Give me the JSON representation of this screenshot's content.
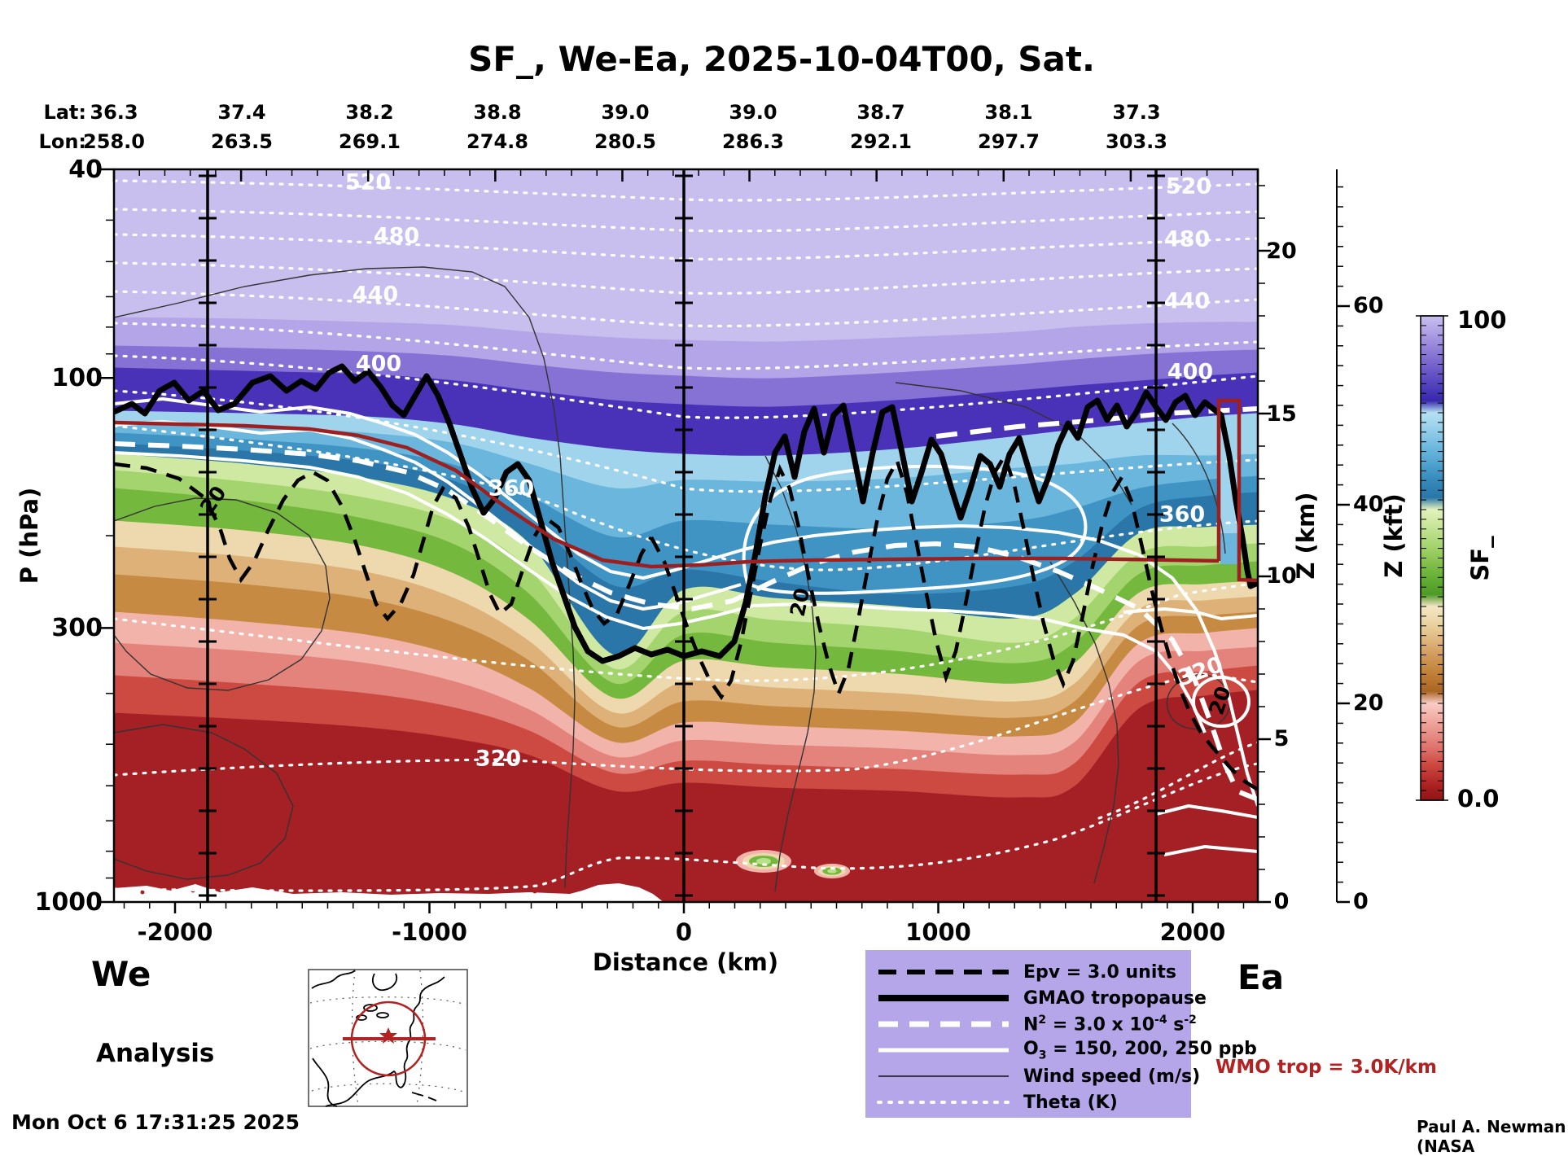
{
  "title": "SF_, We-Ea, 2025-10-04T00, Sat.",
  "waypoints": {
    "lat_label": "Lat:",
    "lon_label": "Lon:",
    "lats": [
      "36.3",
      "37.4",
      "38.2",
      "38.8",
      "39.0",
      "39.0",
      "38.7",
      "38.1",
      "37.3"
    ],
    "lons": [
      "258.0",
      "263.5",
      "269.1",
      "274.8",
      "280.5",
      "286.3",
      "292.1",
      "297.7",
      "303.3"
    ]
  },
  "axes": {
    "y_left": {
      "label": "P (hPa)",
      "ticks": [
        "40",
        "100",
        "300",
        "1000"
      ]
    },
    "x": {
      "label": "Distance (km)",
      "ticks": [
        "-2000",
        "-1000",
        "0",
        "1000",
        "2000"
      ]
    },
    "z_km": {
      "label": "Z (km)",
      "ticks": [
        "0",
        "5",
        "10",
        "15",
        "20"
      ]
    },
    "z_kft": {
      "label": "Z (kft)",
      "ticks": [
        "0",
        "20",
        "40",
        "60"
      ]
    }
  },
  "colorbar": {
    "label": "SF_",
    "max": "100",
    "min": "0.0"
  },
  "contour_labels": {
    "theta": [
      "520",
      "480",
      "440",
      "400",
      "360",
      "320"
    ],
    "wind": "20"
  },
  "legend": {
    "items": [
      {
        "style": "black-dash",
        "parts": [
          {
            "t": "n",
            "s": "Epv = 3.0 units"
          }
        ]
      },
      {
        "style": "black-solid",
        "parts": [
          {
            "t": "n",
            "s": "GMAO tropopause"
          }
        ]
      },
      {
        "style": "white-dash",
        "parts": [
          {
            "t": "n",
            "s": "N"
          },
          {
            "t": "sup",
            "s": "2"
          },
          {
            "t": "n",
            "s": " = 3.0 x 10"
          },
          {
            "t": "sup",
            "s": "-4"
          },
          {
            "t": "n",
            "s": " s"
          },
          {
            "t": "sup",
            "s": "-2"
          }
        ]
      },
      {
        "style": "white-solid",
        "parts": [
          {
            "t": "n",
            "s": "O"
          },
          {
            "t": "sub",
            "s": "3"
          },
          {
            "t": "n",
            "s": " = 150, 200, 250 ppb"
          }
        ]
      },
      {
        "style": "thin-line",
        "parts": [
          {
            "t": "n",
            "s": "Wind speed (m/s)"
          }
        ]
      },
      {
        "style": "white-dot",
        "parts": [
          {
            "t": "n",
            "s": "Theta (K)"
          }
        ]
      }
    ]
  },
  "annotations": {
    "we": "We",
    "ea": "Ea",
    "analysis": "Analysis",
    "timestamp": "Mon Oct  6 17:31:25 2025",
    "credit": "Paul A. Newman (NASA",
    "wmo": "WMO trop = 3.0K/km"
  },
  "colors": {
    "legend_bg": "#b5a6ea",
    "accent_red": "#b22222",
    "wmo_line_red": "#9e1f1f",
    "dark_red_surface": "#a42025",
    "field_palette": [
      "#c8bfee",
      "#b3a5e7",
      "#8672d4",
      "#4a32b8",
      "#9fd4ec",
      "#6ab6dc",
      "#3f94c4",
      "#2b76a8",
      "#cfe9a2",
      "#a4d46e",
      "#74b83e",
      "#edd9ad",
      "#ddb177",
      "#c68a42",
      "#f2b3ab",
      "#e4837b",
      "#cc4a42",
      "#a42025"
    ],
    "colorbar_palette": [
      "#c9c0ef",
      "#b6a9e8",
      "#a291e0",
      "#8d7ad6",
      "#7763cc",
      "#6150c2",
      "#4b3cb8",
      "#3628aa",
      "#b4e0f2",
      "#9fd4ec",
      "#85c5e4",
      "#6ab6dc",
      "#54a7d2",
      "#3f94c4",
      "#3184b4",
      "#2b76a8",
      "#e2f2bc",
      "#cfe9a2",
      "#bade88",
      "#a4d46e",
      "#8ec654",
      "#74b83e",
      "#5ea930",
      "#4d9a28",
      "#f5e6c4",
      "#edd9ad",
      "#e5c892",
      "#ddb177",
      "#d19c5c",
      "#c68a42",
      "#b97730",
      "#a96624",
      "#f8cdc6",
      "#f2b3ab",
      "#eb9a91",
      "#e4837b",
      "#da6a62",
      "#cc4a42",
      "#bc3430",
      "#a51e1e",
      "#8f1515"
    ]
  },
  "chart_data": {
    "type": "heatmap",
    "subtype": "vertical-atmospheric-cross-section",
    "title": "SF_, We-Ea, 2025-10-04T00, Sat.",
    "x": {
      "label": "Distance (km)",
      "ticks": [
        -2000,
        -1000,
        0,
        1000,
        2000
      ],
      "range": [
        -2240,
        2260
      ],
      "waypoint_marker_lines_km": [
        -1870,
        0,
        1855
      ]
    },
    "y": {
      "label": "P (hPa)",
      "scale": "log",
      "ticks": [
        40,
        100,
        300,
        1000
      ],
      "range": [
        40,
        1000
      ]
    },
    "y_right_km": {
      "label": "Z (km)",
      "ticks": [
        0,
        5,
        10,
        15,
        20
      ]
    },
    "y_right_kft": {
      "label": "Z (kft)",
      "ticks": [
        0,
        20,
        40,
        60
      ]
    },
    "colorbar": {
      "label": "SF_",
      "min": 0.0,
      "max": 100
    },
    "waypoints": {
      "lat": [
        36.3,
        37.4,
        38.2,
        38.8,
        39.0,
        39.0,
        38.7,
        38.1,
        37.3
      ],
      "lon": [
        258.0,
        263.5,
        269.1,
        274.8,
        280.5,
        286.3,
        292.1,
        297.7,
        303.3
      ]
    },
    "contours": {
      "theta_K_labeled_levels": [
        320,
        360,
        400,
        440,
        480,
        520
      ],
      "wind_speed_m_s_labeled_level": 20,
      "ozone_ppb_levels": [
        150,
        200,
        250
      ],
      "epv_level_units": 3.0,
      "n2_level_s2": "3.0e-4",
      "wmo_tropopause_criterion_K_per_km": 3.0
    },
    "field_description": "Stratospheric fraction (SF_) shading: ~100 (lavender/purple) in the stratosphere at top grading through blue, green and tan to 0 (dark red) in the troposphere; tropopause fold plunges near -300 km and a deep stratospheric intrusion with boxed region occurs near +1800 km."
  }
}
